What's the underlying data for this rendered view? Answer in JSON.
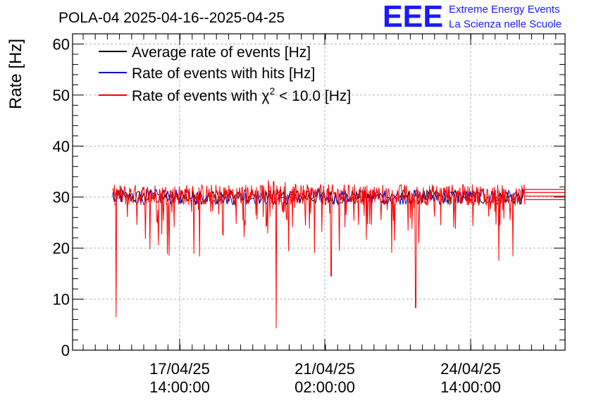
{
  "title": "POLA-04 2025-04-16--2025-04-25",
  "logo": {
    "mark": "EEE",
    "line1": "Extreme Energy Events",
    "line2": "La Scienza nelle Scuole",
    "color": "#1a1aff"
  },
  "chart_data": {
    "type": "line",
    "title": "POLA-04 2025-04-16--2025-04-25",
    "ylabel": "Rate [Hz]",
    "xlabel": "",
    "ylim": [
      0,
      62
    ],
    "y_ticks": [
      0,
      10,
      20,
      30,
      40,
      50,
      60
    ],
    "x_ticks": [
      {
        "line1": "17/04/25",
        "line2": "14:00:00"
      },
      {
        "line1": "21/04/25",
        "line2": "02:00:00"
      },
      {
        "line1": "24/04/25",
        "line2": "14:00:00"
      }
    ],
    "grid": true,
    "legend_position": "top-left",
    "series": [
      {
        "name": "Average rate of events [Hz]",
        "color": "#000000",
        "typical": 30,
        "spread": 3
      },
      {
        "name": "Rate of events with hits [Hz]",
        "color": "#0000cc",
        "typical": 30,
        "spread": 3
      },
      {
        "name": "Rate of events with χ² < 10.0 [Hz]",
        "name_parts": [
          "Rate of events with χ",
          "2",
          " < 10.0 [Hz]"
        ],
        "color": "#ff0000",
        "typical": 30,
        "min_values": [
          6.5,
          4.3,
          14.5,
          8.3,
          17.5
        ],
        "max_value": 33.5
      }
    ]
  }
}
